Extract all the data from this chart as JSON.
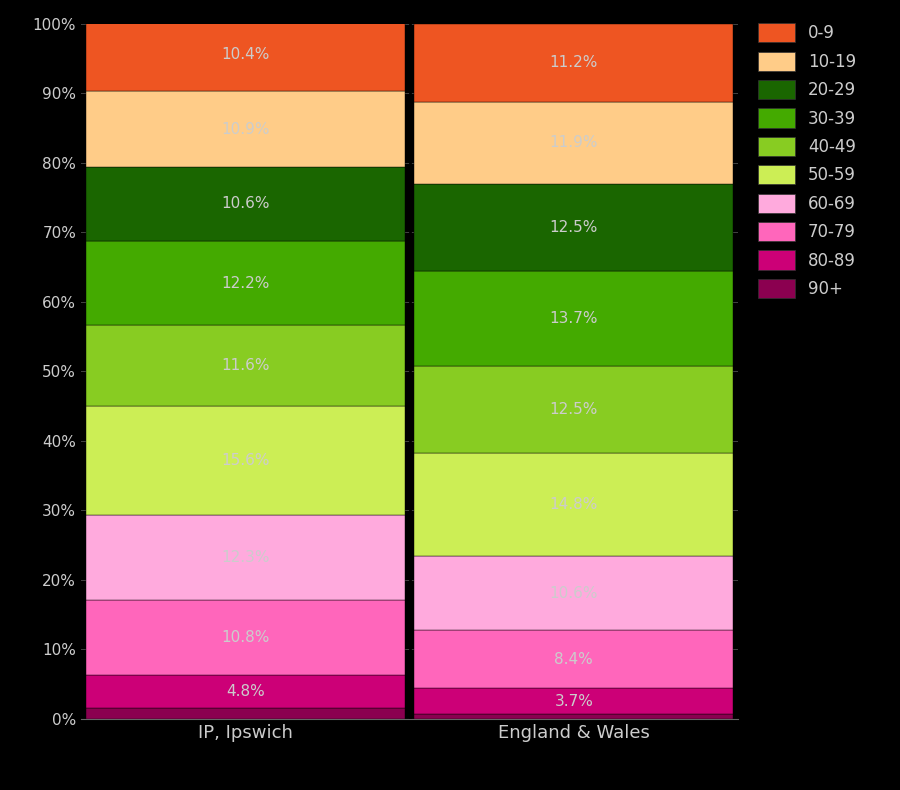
{
  "categories": [
    "IP, Ipswich",
    "England & Wales"
  ],
  "age_groups": [
    "90+",
    "80-89",
    "70-79",
    "60-69",
    "50-59",
    "40-49",
    "30-39",
    "20-29",
    "10-19",
    "0-9"
  ],
  "colors": [
    "#8b0050",
    "#cc0077",
    "#ff66bb",
    "#ffaadd",
    "#ccee55",
    "#88cc22",
    "#44aa00",
    "#1a6600",
    "#ffcc88",
    "#ee5522"
  ],
  "ipswich": [
    1.5,
    4.8,
    10.8,
    12.3,
    15.6,
    11.6,
    12.2,
    10.6,
    10.9,
    10.4
  ],
  "england_wales": [
    0.7,
    3.7,
    8.4,
    10.6,
    14.8,
    12.5,
    13.7,
    12.5,
    11.9,
    11.2
  ],
  "background_color": "#000000",
  "text_color": "#cccccc",
  "label_color": "#cccccc",
  "divider_color": "#000000",
  "grid_color": "#444444",
  "spine_color": "#666666"
}
